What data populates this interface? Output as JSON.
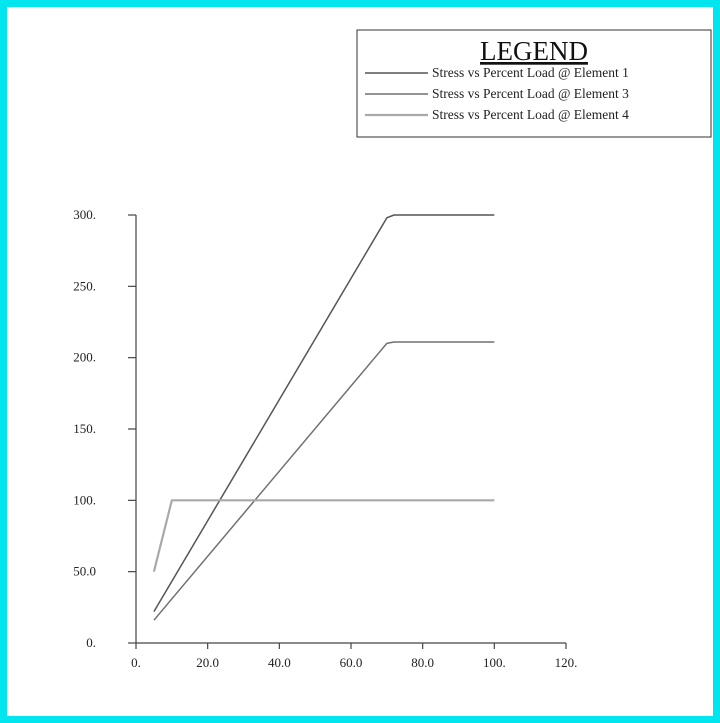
{
  "chart_data": {
    "type": "line",
    "legend": {
      "title": "LEGEND",
      "position": "top-right"
    },
    "x_ticks": [
      "0.",
      "20.0",
      "40.0",
      "60.0",
      "80.0",
      "100.",
      "120."
    ],
    "y_ticks": [
      "0.",
      "50.0",
      "100.",
      "150.",
      "200.",
      "250.",
      "300."
    ],
    "xlim": [
      0,
      120
    ],
    "ylim": [
      0,
      300
    ],
    "grid": false,
    "series": [
      {
        "name": "Stress vs Percent Load @ Element 1",
        "color": "#555555",
        "x": [
          5,
          70,
          72,
          100
        ],
        "y": [
          22,
          298,
          300,
          300
        ]
      },
      {
        "name": "Stress vs Percent Load @ Element 3",
        "color": "#707070",
        "x": [
          5,
          70,
          72,
          100
        ],
        "y": [
          16,
          210,
          211,
          211
        ]
      },
      {
        "name": "Stress vs Percent Load @ Element 4",
        "color": "#a9a9a9",
        "x": [
          5,
          10,
          100
        ],
        "y": [
          50,
          100,
          100
        ]
      }
    ]
  }
}
